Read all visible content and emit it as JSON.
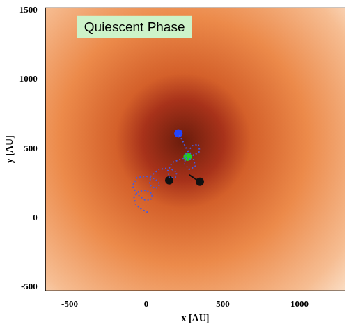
{
  "chart_data": {
    "type": "scatter",
    "annotations": [
      "Quiescent Phase"
    ],
    "x_label": "x [AU]",
    "y_label": "y [AU]",
    "xlim": [
      -660,
      1300
    ],
    "ylim": [
      -530,
      1520
    ],
    "xticks": [
      -500,
      0,
      500,
      1000
    ],
    "yticks": [
      -500,
      0,
      500,
      1000,
      1500
    ],
    "grid": false,
    "series": [
      {
        "type": "line",
        "color": "#4a5ad8",
        "marker": "none",
        "line_style": "dotted",
        "x": [
          10,
          -30,
          -70,
          -80,
          -50,
          0,
          40,
          30,
          -10,
          -60,
          -90,
          -60,
          0,
          60,
          90,
          60,
          20,
          30,
          80,
          150,
          200,
          190,
          150,
          140,
          170,
          240,
          310,
          320,
          280,
          250,
          260,
          300,
          340,
          350,
          310,
          270,
          240,
          210
        ],
        "values": [
          40,
          60,
          100,
          150,
          190,
          200,
          170,
          130,
          130,
          170,
          230,
          290,
          300,
          280,
          240,
          210,
          240,
          300,
          350,
          360,
          330,
          290,
          290,
          340,
          400,
          430,
          420,
          370,
          350,
          390,
          460,
          520,
          530,
          480,
          450,
          480,
          550,
          610
        ]
      },
      {
        "type": "line",
        "color": "#111111",
        "marker": "none",
        "line_style": "solid",
        "x": [
          280,
          350
        ],
        "values": [
          310,
          260
        ]
      },
      {
        "type": "scatter",
        "color": "#2244ff",
        "marker": "circle",
        "x": [
          210
        ],
        "values": [
          610
        ]
      },
      {
        "type": "scatter",
        "color": "#22cc22",
        "marker": "circle",
        "x": [
          270
        ],
        "values": [
          440
        ]
      },
      {
        "type": "scatter",
        "color": "#111111",
        "marker": "circle",
        "x": [
          150,
          350
        ],
        "values": [
          270,
          260
        ]
      }
    ]
  }
}
